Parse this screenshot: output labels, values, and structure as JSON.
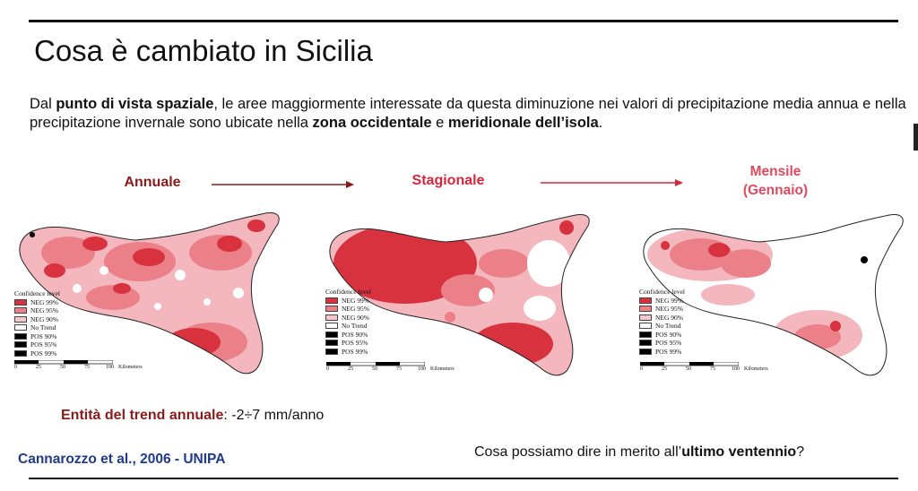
{
  "slide": {
    "title": "Cosa è cambiato in Sicilia",
    "intro": {
      "p1": "Dal ",
      "b1": "punto di vista spaziale",
      "p2": ", le aree maggiormente interessate da questa diminuzione nei valori di precipitazione media annua e  nella precipitazione invernale sono ubicate nella ",
      "b2": "zona occidentale",
      "p3": " e ",
      "b3": "meridionale dell’isola",
      "p4": "."
    },
    "maps": [
      {
        "label": "Annuale",
        "color": "#8b1a1a"
      },
      {
        "label": "Stagionale",
        "color": "#d7263d"
      },
      {
        "label_line1": "Mensile",
        "label_line2": "(Gennaio)",
        "color": "#e04a5f"
      }
    ],
    "legend": {
      "title": "Confidence level",
      "items": [
        {
          "label": "NEG 99%",
          "color": "#d8323f"
        },
        {
          "label": "NEG 95%",
          "color": "#ec8089"
        },
        {
          "label": "NEG 90%",
          "color": "#f6c6cb"
        },
        {
          "label": "No Trend",
          "color": "#ffffff"
        },
        {
          "label": "POS 90%",
          "color": "#000000"
        },
        {
          "label": "POS 95%",
          "color": "#000000"
        },
        {
          "label": "POS 99%",
          "color": "#000000"
        }
      ]
    },
    "scale": {
      "ticks": [
        "0",
        "25",
        "50",
        "75",
        "100"
      ],
      "unit": "Kilometers"
    },
    "trend": {
      "label": "Entità del trend annuale",
      "value": ": -2÷7 mm/anno"
    },
    "citation": "Cannarozzo et al., 2006 - UNIPA",
    "question": {
      "p1": "Cosa possiamo dire in merito all’",
      "b1": "ultimo ventennio",
      "p2": "?"
    }
  }
}
